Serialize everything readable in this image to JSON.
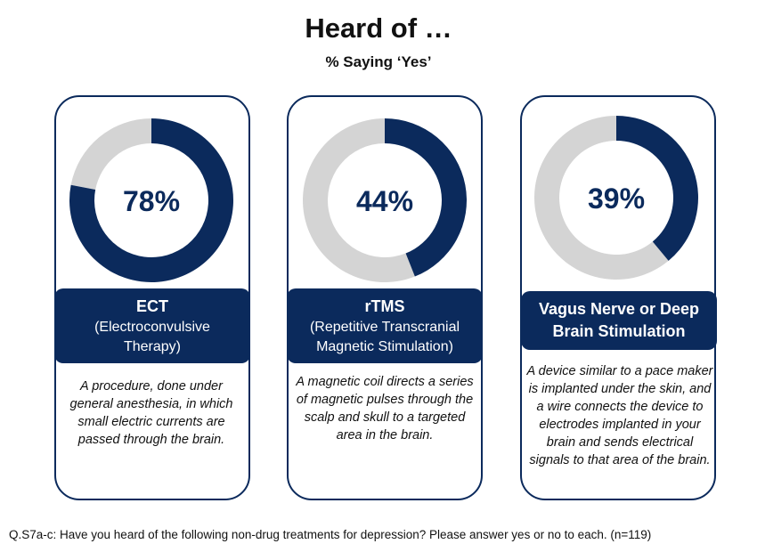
{
  "title": "Heard of …",
  "subtitle": "% Saying ‘Yes’",
  "colors": {
    "filled": "#0b2a5c",
    "remaining": "#d4d4d4",
    "border": "#0b2a5c"
  },
  "chart_data": [
    {
      "type": "pie",
      "variant": "donut",
      "value": 78,
      "value_label": "78%",
      "name": "ECT",
      "subname": "(Electroconvulsive Therapy)",
      "description": "A procedure, done under general anesthesia, in which small electric currents are passed through the brain."
    },
    {
      "type": "pie",
      "variant": "donut",
      "value": 44,
      "value_label": "44%",
      "name": "rTMS",
      "subname": "(Repetitive Transcranial Magnetic Stimulation)",
      "description": "A magnetic coil directs a series of magnetic pulses through the scalp and skull to a targeted area in the brain."
    },
    {
      "type": "pie",
      "variant": "donut",
      "value": 39,
      "value_label": "39%",
      "name": "Vagus Nerve or Deep Brain Stimulation",
      "subname": "",
      "description": "A device similar to a pace maker is implanted under the skin, and a wire connects the device to electrodes implanted in your brain and sends electrical signals to that area of the brain."
    }
  ],
  "footnote": "Q.S7a-c: Have you heard of the following non-drug treatments for depression? Please answer yes or no to each.  (n=119)"
}
